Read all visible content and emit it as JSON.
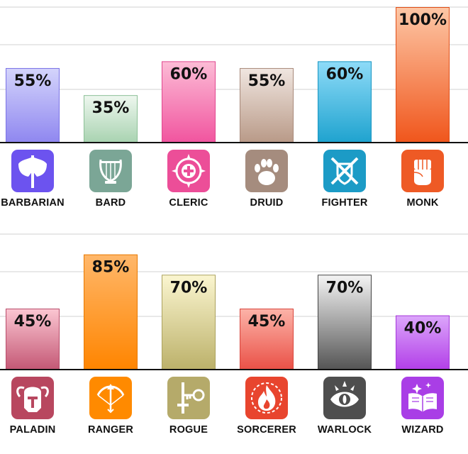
{
  "chart_data": [
    {
      "type": "bar",
      "categories": [
        "BARBARIAN",
        "BARD",
        "CLERIC",
        "DRUID",
        "FIGHTER",
        "MONK"
      ],
      "values": [
        55,
        35,
        60,
        55,
        60,
        100
      ],
      "value_labels": [
        "55%",
        "35%",
        "60%",
        "55%",
        "60%",
        "100%"
      ],
      "ylim": [
        0,
        100
      ],
      "grid": true,
      "colors": [
        {
          "top": "#d4d4fb",
          "bottom": "#8f87f0",
          "border": "#7a72e6"
        },
        {
          "top": "#eef7ef",
          "bottom": "#a9d3b1",
          "border": "#8cc096"
        },
        {
          "top": "#fcbcd6",
          "bottom": "#f1559f",
          "border": "#e0488f"
        },
        {
          "top": "#f0e6e0",
          "bottom": "#b99a88",
          "border": "#a8897a"
        },
        {
          "top": "#8edbf8",
          "bottom": "#1fa3cf",
          "border": "#1796c2"
        },
        {
          "top": "#fdc7a6",
          "bottom": "#f0561c",
          "border": "#e04d16"
        }
      ],
      "icons": [
        {
          "name": "double-axe-icon",
          "color": "#6c53ef"
        },
        {
          "name": "lyre-icon",
          "color": "#7ba696"
        },
        {
          "name": "holy-cross-icon",
          "color": "#ec4e98"
        },
        {
          "name": "paw-print-icon",
          "color": "#a58c7e"
        },
        {
          "name": "crossed-swords-shield-icon",
          "color": "#1c9bc6"
        },
        {
          "name": "fist-icon",
          "color": "#ee5a25"
        }
      ]
    },
    {
      "type": "bar",
      "categories": [
        "PALADIN",
        "RANGER",
        "ROGUE",
        "SORCERER",
        "WARLOCK",
        "WIZARD"
      ],
      "values": [
        45,
        85,
        70,
        45,
        70,
        40
      ],
      "value_labels": [
        "45%",
        "85%",
        "70%",
        "45%",
        "70%",
        "40%"
      ],
      "ylim": [
        0,
        100
      ],
      "grid": true,
      "colors": [
        {
          "top": "#fbc6d2",
          "bottom": "#c45875",
          "border": "#b84c6a"
        },
        {
          "top": "#ffb76a",
          "bottom": "#ff8500",
          "border": "#e87900"
        },
        {
          "top": "#fbf6d0",
          "bottom": "#bcb16a",
          "border": "#aca25e"
        },
        {
          "top": "#fcb3a8",
          "bottom": "#ea5147",
          "border": "#d9463d"
        },
        {
          "top": "#f4f4f4",
          "bottom": "#555555",
          "border": "#444444"
        },
        {
          "top": "#dca6fb",
          "bottom": "#b23fe8",
          "border": "#a436da"
        }
      ],
      "icons": [
        {
          "name": "winged-helmet-icon",
          "color": "#b8475f"
        },
        {
          "name": "bow-arrow-icon",
          "color": "#ff8a00"
        },
        {
          "name": "dagger-key-icon",
          "color": "#b5aa6a"
        },
        {
          "name": "flame-icon",
          "color": "#e8452e"
        },
        {
          "name": "eye-sigil-icon",
          "color": "#4e4e4e"
        },
        {
          "name": "spellbook-icon",
          "color": "#a93ee6"
        }
      ]
    }
  ]
}
